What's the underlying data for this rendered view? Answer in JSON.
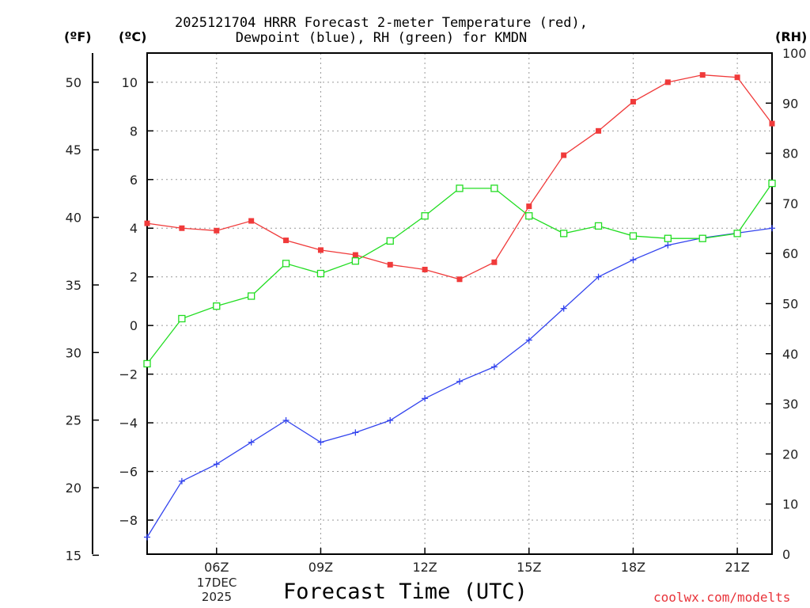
{
  "chart_data": {
    "type": "line",
    "title_line1": "2025121704 HRRR Forecast 2-meter Temperature (red),",
    "title_line2": "Dewpoint (blue), RH (green) for KMDN",
    "left_outer_unit": "(ºF)",
    "left_inner_unit": "(ºC)",
    "right_unit": "(RH)",
    "xlabel": "Forecast Time (UTC)",
    "credit": "coolwx.com/modelts",
    "date_line1": "17DEC",
    "date_line2": "2025",
    "x_hours": [
      4,
      5,
      6,
      7,
      8,
      9,
      10,
      11,
      12,
      13,
      14,
      15,
      16,
      17,
      18,
      19,
      20,
      21,
      22
    ],
    "x_range": [
      4,
      22
    ],
    "x_ticks": [
      {
        "hour": 6,
        "label": "06Z"
      },
      {
        "hour": 9,
        "label": "09Z"
      },
      {
        "hour": 12,
        "label": "12Z"
      },
      {
        "hour": 15,
        "label": "15Z"
      },
      {
        "hour": 18,
        "label": "18Z"
      },
      {
        "hour": 21,
        "label": "21Z"
      }
    ],
    "celsius_range": [
      -9.4,
      11.2
    ],
    "celsius_ticks": [
      -8,
      -6,
      -4,
      -2,
      0,
      2,
      4,
      6,
      8,
      10
    ],
    "fahrenheit_ticks": [
      15,
      20,
      25,
      30,
      35,
      40,
      45,
      50
    ],
    "rh_range": [
      0,
      100
    ],
    "rh_ticks": [
      0,
      10,
      20,
      30,
      40,
      50,
      60,
      70,
      80,
      90,
      100
    ],
    "series": [
      {
        "name": "Temperature",
        "axis": "celsius",
        "color": "#f03a3a",
        "marker": "filled-square",
        "values": [
          4.2,
          4.0,
          3.9,
          4.3,
          3.5,
          3.1,
          2.9,
          2.5,
          2.3,
          1.9,
          2.6,
          4.9,
          7.0,
          8.0,
          9.2,
          10.0,
          10.3,
          10.2,
          8.3
        ]
      },
      {
        "name": "Dewpoint",
        "axis": "celsius",
        "color": "#3344ee",
        "marker": "plus",
        "values": [
          -8.7,
          -6.4,
          -5.7,
          -4.8,
          -3.9,
          -4.8,
          -4.4,
          -3.9,
          -3.0,
          -2.3,
          -1.7,
          -0.6,
          0.7,
          2.0,
          2.7,
          3.3,
          3.6,
          3.8,
          4.0
        ]
      },
      {
        "name": "RH",
        "axis": "rh",
        "color": "#22dd22",
        "marker": "open-square",
        "values": [
          38,
          47,
          49.5,
          51.5,
          58,
          56,
          58.5,
          62.5,
          67.5,
          73,
          73,
          67.5,
          64,
          65.5,
          63.5,
          63,
          63,
          64,
          74
        ]
      }
    ]
  }
}
